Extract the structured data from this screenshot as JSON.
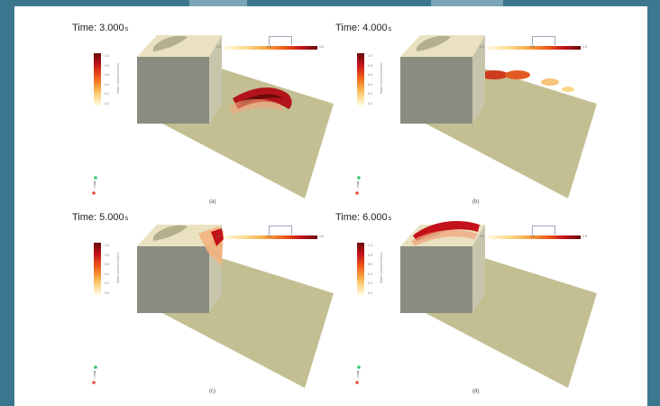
{
  "panels": [
    {
      "time_label": "Time:",
      "time_value": "3.000",
      "time_unit": "s",
      "caption": "(a)"
    },
    {
      "time_label": "Time:",
      "time_value": "4.000",
      "time_unit": "s",
      "caption": "(b)"
    },
    {
      "time_label": "Time:",
      "time_value": "5.000",
      "time_unit": "s",
      "caption": "(c)"
    },
    {
      "time_label": "Time:",
      "time_value": "6.000",
      "time_unit": "s",
      "caption": "(d)"
    }
  ],
  "colorbar": {
    "ticks": [
      "1.0",
      "0.8",
      "0.6",
      "0.4",
      "0.2",
      "0.0"
    ],
    "title": "Water volume fraction",
    "h_left": "0.0",
    "h_mid": "0.5",
    "h_right": "1.0"
  },
  "colors": {
    "cube_top": "#e9e1c0",
    "cube_front": "#8b8c80",
    "cube_side": "#c7c6ad",
    "ground": "#c3bf93",
    "hot": "#b3141b",
    "frame": "#3b7890"
  }
}
